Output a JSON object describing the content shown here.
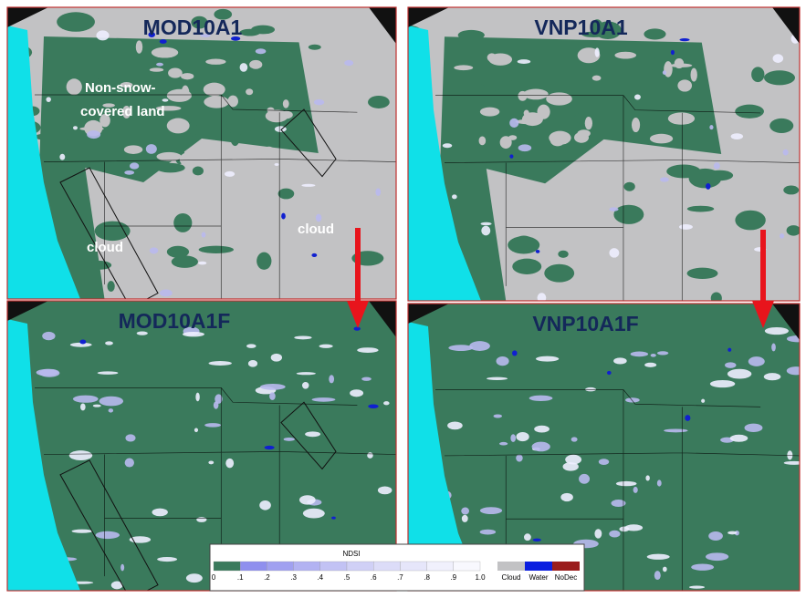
{
  "panels": [
    {
      "title": "MOD10A1"
    },
    {
      "title": "VNP10A1"
    },
    {
      "title": "MOD10A1F"
    },
    {
      "title": "VNP10A1F"
    }
  ],
  "annotations": {
    "land": [
      "Non-snow-",
      "covered land"
    ],
    "cloud_left": "cloud",
    "cloud_right": "cloud"
  },
  "legend": {
    "title": "NDSI",
    "ticks": [
      "0",
      ".1",
      ".2",
      ".3",
      ".4",
      ".5",
      ".6",
      ".7",
      ".8",
      ".9",
      "1.0"
    ],
    "classes": [
      "Cloud",
      "Water",
      "NoDec"
    ]
  }
}
